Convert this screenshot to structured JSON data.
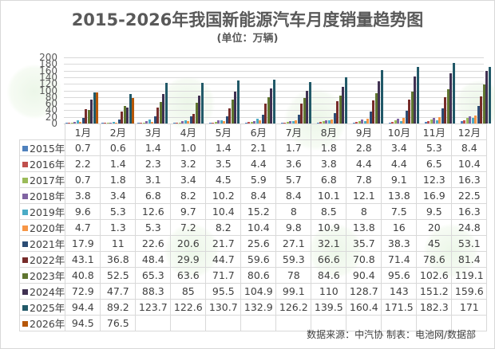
{
  "title": "2015-2026年我国新能源汽车月度销量趋势图",
  "subtitle": "(单位：万辆)",
  "source_note": "数据来源：中汽协  制表：电池网/数据部",
  "chart_data": {
    "type": "bar",
    "title": "2015-2026年我国新能源汽车月度销量趋势图",
    "subtitle": "(单位：万辆)",
    "xlabel": "",
    "ylabel": "万辆",
    "ylim": [
      0,
      200
    ],
    "yticks": [
      "200",
      "180",
      "160",
      "140",
      "120",
      "100",
      "80",
      "60",
      "40",
      "20",
      "0"
    ],
    "grid": true,
    "legend_position": "table-left",
    "categories": [
      "1月",
      "2月",
      "3月",
      "4月",
      "5月",
      "6月",
      "7月",
      "8月",
      "9月",
      "10月",
      "11月",
      "12月"
    ],
    "series": [
      {
        "name": "2015年",
        "color": "#4f81bd",
        "values": [
          0.7,
          0.6,
          1.4,
          1.0,
          1.4,
          2.1,
          1.7,
          1.8,
          2.8,
          3.4,
          5.3,
          8.4
        ]
      },
      {
        "name": "2016年",
        "color": "#c0504d",
        "values": [
          2.2,
          1.4,
          2.3,
          3.2,
          3.5,
          4.4,
          3.6,
          3.8,
          4.4,
          4.4,
          6.5,
          10.4
        ]
      },
      {
        "name": "2017年",
        "color": "#9bbb59",
        "values": [
          0.7,
          1.8,
          3.1,
          3.4,
          4.5,
          5.9,
          5.7,
          6.8,
          7.8,
          9.1,
          12.3,
          16.3
        ]
      },
      {
        "name": "2018年",
        "color": "#8064a2",
        "values": [
          3.8,
          3.4,
          6.8,
          8.2,
          10.2,
          8.4,
          8.4,
          10.1,
          12.1,
          13.8,
          16.9,
          22.5
        ]
      },
      {
        "name": "2019年",
        "color": "#4bacc6",
        "values": [
          9.6,
          5.3,
          12.6,
          9.7,
          10.4,
          15.2,
          8,
          8.5,
          8,
          7.5,
          9.5,
          16.3
        ]
      },
      {
        "name": "2020年",
        "color": "#f79646",
        "values": [
          4.7,
          1.3,
          5.3,
          7.2,
          8.2,
          10.4,
          9.8,
          10.9,
          13.8,
          16,
          20,
          24.8
        ]
      },
      {
        "name": "2021年",
        "color": "#2c4d75",
        "values": [
          17.9,
          11,
          22.6,
          20.6,
          21.7,
          25.6,
          27.1,
          32.1,
          35.7,
          38.3,
          45,
          53.1
        ]
      },
      {
        "name": "2022年",
        "color": "#772c2a",
        "values": [
          43.1,
          36.8,
          48.4,
          29.9,
          44.7,
          59.6,
          59.3,
          66.6,
          70.8,
          71.4,
          78.6,
          81.4
        ]
      },
      {
        "name": "2023年",
        "color": "#5f7530",
        "values": [
          40.8,
          52.5,
          65.3,
          63.6,
          71.7,
          80.6,
          78,
          84.6,
          90.4,
          95.6,
          102.6,
          119.1
        ]
      },
      {
        "name": "2024年",
        "color": "#403152",
        "values": [
          72.9,
          47.7,
          88.3,
          85,
          95.5,
          104.9,
          99.1,
          110,
          128.7,
          143,
          151.2,
          159.6
        ]
      },
      {
        "name": "2025年",
        "color": "#215968",
        "values": [
          94.4,
          89.2,
          123.7,
          122.6,
          130.7,
          132.9,
          126.2,
          139.5,
          160.4,
          171.5,
          182.3,
          171
        ]
      },
      {
        "name": "2026年",
        "color": "#b65708",
        "values": [
          94.5,
          76.5,
          null,
          null,
          null,
          null,
          null,
          null,
          null,
          null,
          null,
          null
        ]
      }
    ]
  },
  "table": {
    "rows": [
      {
        "label": "2015年",
        "cells": [
          "0.7",
          "0.6",
          "1.4",
          "1.0",
          "1.4",
          "2.1",
          "1.7",
          "1.8",
          "2.8",
          "3.4",
          "5.3",
          "8.4"
        ]
      },
      {
        "label": "2016年",
        "cells": [
          "2.2",
          "1.4",
          "2.3",
          "3.2",
          "3.5",
          "4.4",
          "3.6",
          "3.8",
          "4.4",
          "4.4",
          "6.5",
          "10.4"
        ]
      },
      {
        "label": "2017年",
        "cells": [
          "0.7",
          "1.8",
          "3.1",
          "3.4",
          "4.5",
          "5.9",
          "5.7",
          "6.8",
          "7.8",
          "9.1",
          "12.3",
          "16.3"
        ]
      },
      {
        "label": "2018年",
        "cells": [
          "3.8",
          "3.4",
          "6.8",
          "8.2",
          "10.2",
          "8.4",
          "8.4",
          "10.1",
          "12.1",
          "13.8",
          "16.9",
          "22.5"
        ]
      },
      {
        "label": "2019年",
        "cells": [
          "9.6",
          "5.3",
          "12.6",
          "9.7",
          "10.4",
          "15.2",
          "8",
          "8.5",
          "8",
          "7.5",
          "9.5",
          "16.3"
        ]
      },
      {
        "label": "2020年",
        "cells": [
          "4.7",
          "1.3",
          "5.3",
          "7.2",
          "8.2",
          "10.4",
          "9.8",
          "10.9",
          "13.8",
          "16",
          "20",
          "24.8"
        ]
      },
      {
        "label": "2021年",
        "cells": [
          "17.9",
          "11",
          "22.6",
          "20.6",
          "21.7",
          "25.6",
          "27.1",
          "32.1",
          "35.7",
          "38.3",
          "45",
          "53.1"
        ]
      },
      {
        "label": "2022年",
        "cells": [
          "43.1",
          "36.8",
          "48.4",
          "29.9",
          "44.7",
          "59.6",
          "59.3",
          "66.6",
          "70.8",
          "71.4",
          "78.6",
          "81.4"
        ]
      },
      {
        "label": "2023年",
        "cells": [
          "40.8",
          "52.5",
          "65.3",
          "63.6",
          "71.7",
          "80.6",
          "78",
          "84.6",
          "90.4",
          "95.6",
          "102.6",
          "119.1"
        ]
      },
      {
        "label": "2024年",
        "cells": [
          "72.9",
          "47.7",
          "88.3",
          "85",
          "95.5",
          "104.9",
          "99.1",
          "110",
          "128.7",
          "143",
          "151.2",
          "159.6"
        ]
      },
      {
        "label": "2025年",
        "cells": [
          "94.4",
          "89.2",
          "123.7",
          "122.6",
          "130.7",
          "132.9",
          "126.2",
          "139.5",
          "160.4",
          "171.5",
          "182.3",
          "171"
        ]
      },
      {
        "label": "2026年",
        "cells": [
          "94.5",
          "76.5",
          "",
          "",
          "",
          "",
          "",
          "",
          "",
          "",
          "",
          ""
        ]
      }
    ]
  }
}
